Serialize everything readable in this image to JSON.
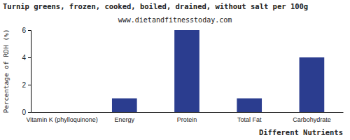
{
  "chart_data": {
    "type": "bar",
    "title": "Turnip greens, frozen, cooked, boiled, drained, without salt per 100g",
    "subtitle": "www.dietandfitnesstoday.com",
    "x_label": "Different Nutrients",
    "y_label": "Percentage of RDH (%)",
    "categories": [
      "Vitamin K (phylloquinone)",
      "Energy",
      "Protein",
      "Total Fat",
      "Carbohydrate"
    ],
    "values": [
      0,
      1,
      6,
      1,
      4
    ],
    "color": "#2b3d8f",
    "ylim": [
      0,
      6
    ],
    "yticks": [
      0,
      2,
      4,
      6
    ],
    "grid": false
  }
}
